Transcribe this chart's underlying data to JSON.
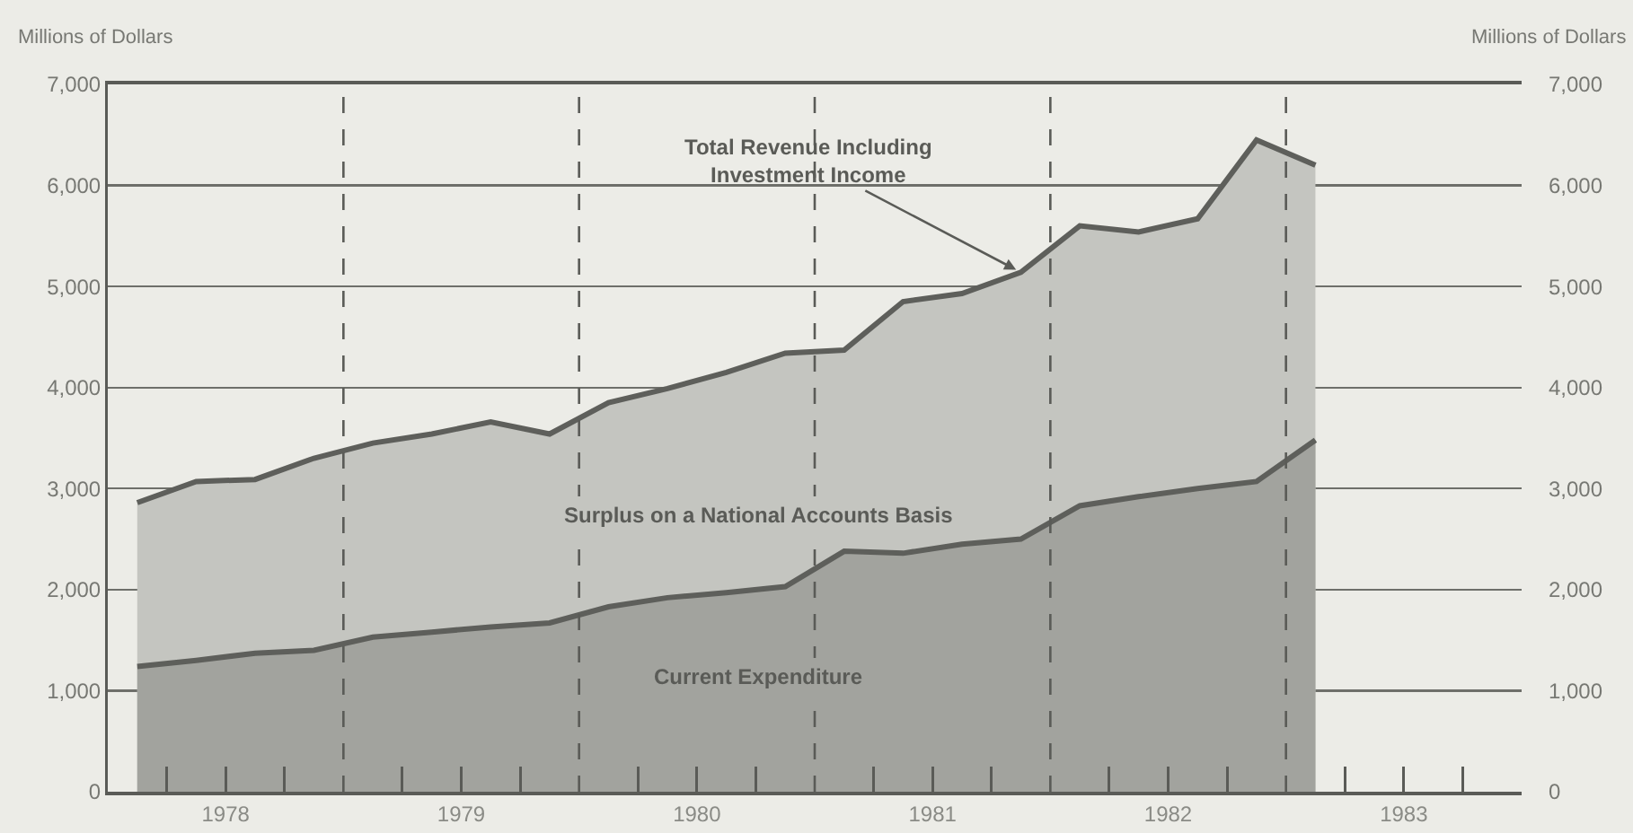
{
  "chart_data": {
    "type": "area",
    "ylabel": "Millions of Dollars",
    "y2label": "Millions of Dollars",
    "x": [
      1978.125,
      1978.375,
      1978.625,
      1978.875,
      1979.125,
      1979.375,
      1979.625,
      1979.875,
      1980.125,
      1980.375,
      1980.625,
      1980.875,
      1981.125,
      1981.375,
      1981.625,
      1981.875,
      1982.125,
      1982.375,
      1982.625,
      1982.875,
      1983.125
    ],
    "series": [
      {
        "color": "#5e5f5b",
        "values": [
          2860,
          3070,
          3090,
          3300,
          3450,
          3540,
          3660,
          3540,
          3850,
          3990,
          4150,
          4340,
          4370,
          4850,
          4930,
          5140,
          5600,
          5540,
          5670,
          6450,
          6200
        ]
      },
      {
        "color": "#5e5f5b",
        "values": [
          1240,
          1300,
          1370,
          1400,
          1530,
          1580,
          1630,
          1670,
          1830,
          1920,
          1970,
          2030,
          2380,
          2360,
          2450,
          2500,
          2830,
          2920,
          3000,
          3070,
          3480
        ]
      }
    ],
    "annotations": [
      {
        "text": "Total Revenue Including Investment Income",
        "x": 1981.875,
        "y": 5140
      },
      "Surplus on a National Accounts Basis",
      "Current Expenditure"
    ],
    "xlim": [
      1978,
      1984
    ],
    "xticks": [
      {
        "value": 1978.25,
        "label": null
      },
      {
        "value": 1978.5,
        "label": "1978"
      },
      {
        "value": 1978.75,
        "label": null
      },
      {
        "value": 1979.25,
        "label": null
      },
      {
        "value": 1979.5,
        "label": "1979"
      },
      {
        "value": 1979.75,
        "label": null
      },
      {
        "value": 1980.25,
        "label": null
      },
      {
        "value": 1980.5,
        "label": "1980"
      },
      {
        "value": 1980.75,
        "label": null
      },
      {
        "value": 1981.25,
        "label": null
      },
      {
        "value": 1981.5,
        "label": "1981"
      },
      {
        "value": 1981.75,
        "label": null
      },
      {
        "value": 1982.25,
        "label": null
      },
      {
        "value": 1982.5,
        "label": "1982"
      },
      {
        "value": 1982.75,
        "label": null
      },
      {
        "value": 1983.25,
        "label": null
      },
      {
        "value": 1983.5,
        "label": "1983"
      },
      {
        "value": 1983.75,
        "label": null
      }
    ],
    "ylim": [
      0,
      7000
    ],
    "yticks": [
      {
        "value": 0,
        "label": "0"
      },
      {
        "value": 1000,
        "label": "1,000"
      },
      {
        "value": 2000,
        "label": "2,000"
      },
      {
        "value": 3000,
        "label": "3,000"
      },
      {
        "value": 4000,
        "label": "4,000"
      },
      {
        "value": 5000,
        "label": "5,000"
      },
      {
        "value": 6000,
        "label": "6,000"
      },
      {
        "value": 7000,
        "label": "7,000"
      }
    ],
    "y2lim": [
      0,
      7000
    ],
    "y2ticks": [
      {
        "value": 0,
        "label": "0"
      },
      {
        "value": 1000,
        "label": "1,000"
      },
      {
        "value": 2000,
        "label": "2,000"
      },
      {
        "value": 3000,
        "label": "3,000"
      },
      {
        "value": 4000,
        "label": "4,000"
      },
      {
        "value": 5000,
        "label": "5,000"
      },
      {
        "value": 6000,
        "label": "6,000"
      },
      {
        "value": 7000,
        "label": "7,000"
      }
    ],
    "ref_lines": [
      {
        "axis": "x",
        "value": 1979,
        "line_style": "dashed"
      },
      {
        "axis": "x",
        "value": 1980,
        "line_style": "dashed"
      },
      {
        "axis": "x",
        "value": 1981,
        "line_style": "dashed"
      },
      {
        "axis": "x",
        "value": 1982,
        "line_style": "dashed"
      },
      {
        "axis": "x",
        "value": 1983,
        "line_style": "dashed"
      }
    ],
    "grid": "y"
  }
}
